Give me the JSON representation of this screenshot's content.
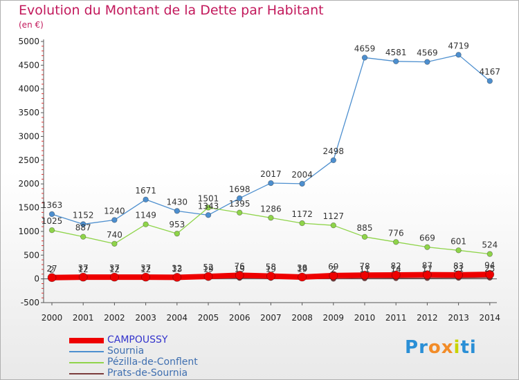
{
  "chart_data": {
    "type": "line",
    "title": "Evolution du Montant de la Dette par Habitant",
    "subtitle": "(en €)",
    "categories": [
      "2000",
      "2001",
      "2002",
      "2003",
      "2004",
      "2005",
      "2006",
      "2007",
      "2008",
      "2009",
      "2010",
      "2011",
      "2012",
      "2013",
      "2014"
    ],
    "ylim": [
      -500,
      5000
    ],
    "yticks": [
      -500,
      0,
      500,
      1000,
      1500,
      2000,
      2500,
      3000,
      3500,
      4000,
      4500,
      5000
    ],
    "grid": false,
    "legend_position": "bottom-left",
    "series": [
      {
        "name": "CAMPOUSSY",
        "color": "#ee0000",
        "values": [
          27,
          37,
          37,
          37,
          32,
          52,
          76,
          58,
          38,
          69,
          78,
          82,
          87,
          83,
          94
        ],
        "labels": [
          "27",
          "37",
          "37",
          "37",
          "32",
          "52",
          "76",
          "58",
          "38",
          "69",
          "78",
          "82",
          "87",
          "83",
          "94"
        ],
        "emphasis": true
      },
      {
        "name": "Sournia",
        "color": "#4d8fcf",
        "values": [
          1363,
          1152,
          1240,
          1671,
          1430,
          1343,
          1698,
          2017,
          2004,
          2498,
          4659,
          4581,
          4569,
          4719,
          4167
        ],
        "labels": [
          "1363",
          "1152",
          "1240",
          "1671",
          "1430",
          "1343",
          "1698",
          "2017",
          "2004",
          "2498",
          "4659",
          "4581",
          "4569",
          "4719",
          "4167"
        ]
      },
      {
        "name": "Pézilla-de-Conflent",
        "color": "#8fd44a",
        "values": [
          1025,
          887,
          740,
          1149,
          953,
          1501,
          1395,
          1286,
          1172,
          1127,
          885,
          776,
          669,
          601,
          524
        ],
        "labels": [
          "1025",
          "887",
          "740",
          "1149",
          "953",
          "1501",
          "1395",
          "1286",
          "1172",
          "1127",
          "885",
          "776",
          "669",
          "601",
          "524"
        ]
      },
      {
        "name": "Prats-de-Sournia",
        "color": "#7a3a3a",
        "values": [
          2,
          12,
          12,
          12,
          13,
          19,
          19,
          19,
          19,
          2,
          11,
          14,
          17,
          21,
          25
        ],
        "labels": [
          "2",
          "12",
          "12",
          "12",
          "13",
          "19",
          "19",
          "19",
          "19",
          "2",
          "11",
          "14",
          "17",
          "21",
          "25"
        ]
      }
    ]
  },
  "brand": {
    "logo_letters": [
      "P",
      "r",
      "o",
      "x",
      "i",
      "t",
      "i"
    ],
    "logo_colors": [
      "#2a8fd6",
      "#2a8fd6",
      "#f28c28",
      "#f28c28",
      "#c8d400",
      "#2a8fd6",
      "#2a8fd6"
    ]
  }
}
